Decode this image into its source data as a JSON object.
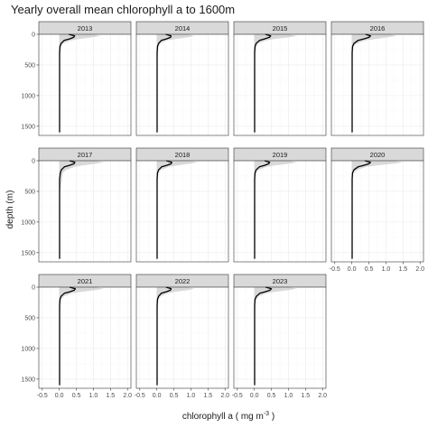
{
  "chart_data": {
    "type": "line",
    "title": "Yearly overall mean chlorophyll a to 1600m",
    "xlabel": "chlorophyll a ( mg m",
    "xlabel_superscript": "-3",
    "xlabel_suffix": " )",
    "ylabel": "depth (m)",
    "facets": [
      "2013",
      "2014",
      "2015",
      "2016",
      "2017",
      "2018",
      "2019",
      "2020",
      "2021",
      "2022",
      "2023"
    ],
    "facet_columns": 4,
    "xlim": [
      -0.6,
      2.1
    ],
    "ylim": [
      0,
      1650
    ],
    "y_reversed": true,
    "x_ticks": [
      -0.5,
      0.0,
      0.5,
      1.0,
      1.5,
      2.0
    ],
    "x_tick_labels": [
      "-0.5",
      "0.0",
      "0.5",
      "1.0",
      "1.5",
      "2.0"
    ],
    "y_ticks": [
      0,
      500,
      1000,
      1500
    ],
    "y_tick_labels": [
      "0",
      "500",
      "1000",
      "1500"
    ],
    "grid": true,
    "colors": {
      "mean_line": "#000000",
      "range_band": "#cccccc",
      "strip_fill": "#d9d9d9",
      "panel_border": "#333333",
      "grid": "#ebebeb"
    },
    "series": [
      {
        "facet": "2013",
        "depth": [
          0,
          25,
          50,
          75,
          100,
          150,
          200,
          300,
          500,
          1000,
          1600
        ],
        "mean": [
          0.28,
          0.45,
          0.42,
          0.3,
          0.14,
          0.05,
          0.02,
          0.01,
          0.01,
          0.01,
          0.01
        ],
        "max": [
          0.95,
          1.2,
          0.95,
          0.6,
          0.35,
          0.12,
          0.05,
          0.03,
          0.02,
          0.02,
          0.02
        ]
      },
      {
        "facet": "2014",
        "depth": [
          0,
          25,
          50,
          75,
          100,
          150,
          200,
          300,
          500,
          1000,
          1600
        ],
        "mean": [
          0.26,
          0.42,
          0.4,
          0.28,
          0.13,
          0.05,
          0.02,
          0.01,
          0.01,
          0.01,
          0.01
        ],
        "max": [
          0.9,
          1.1,
          0.9,
          0.55,
          0.3,
          0.1,
          0.05,
          0.03,
          0.02,
          0.02,
          0.02
        ]
      },
      {
        "facet": "2015",
        "depth": [
          0,
          25,
          50,
          75,
          100,
          150,
          200,
          300,
          500,
          1000,
          1600
        ],
        "mean": [
          0.32,
          0.48,
          0.44,
          0.3,
          0.15,
          0.05,
          0.02,
          0.01,
          0.01,
          0.01,
          0.01
        ],
        "max": [
          1.0,
          1.25,
          1.0,
          0.6,
          0.35,
          0.12,
          0.05,
          0.03,
          0.02,
          0.02,
          0.02
        ]
      },
      {
        "facet": "2016",
        "depth": [
          0,
          25,
          50,
          75,
          100,
          150,
          200,
          300,
          500,
          1000,
          1600
        ],
        "mean": [
          0.4,
          0.55,
          0.5,
          0.35,
          0.18,
          0.06,
          0.02,
          0.01,
          0.01,
          0.01,
          0.01
        ],
        "max": [
          1.1,
          1.3,
          1.05,
          0.7,
          0.4,
          0.15,
          0.05,
          0.03,
          0.02,
          0.02,
          0.02
        ]
      },
      {
        "facet": "2017",
        "depth": [
          0,
          25,
          50,
          75,
          100,
          150,
          200,
          300,
          500,
          1000,
          1600
        ],
        "mean": [
          0.3,
          0.46,
          0.43,
          0.3,
          0.15,
          0.06,
          0.03,
          0.01,
          0.01,
          0.01,
          0.01
        ],
        "max": [
          1.05,
          1.3,
          1.05,
          0.7,
          0.45,
          0.2,
          0.1,
          0.08,
          0.02,
          0.02,
          0.02
        ]
      },
      {
        "facet": "2018",
        "depth": [
          0,
          25,
          50,
          75,
          100,
          150,
          200,
          300,
          500,
          1000,
          1600
        ],
        "mean": [
          0.28,
          0.44,
          0.42,
          0.29,
          0.14,
          0.05,
          0.02,
          0.01,
          0.01,
          0.01,
          0.01
        ],
        "max": [
          0.95,
          1.2,
          0.95,
          0.6,
          0.35,
          0.12,
          0.05,
          0.03,
          0.02,
          0.02,
          0.02
        ]
      },
      {
        "facet": "2019",
        "depth": [
          0,
          25,
          50,
          75,
          100,
          150,
          200,
          300,
          500,
          1000,
          1600
        ],
        "mean": [
          0.3,
          0.45,
          0.42,
          0.3,
          0.15,
          0.05,
          0.02,
          0.01,
          0.01,
          0.01,
          0.01
        ],
        "max": [
          1.0,
          1.25,
          1.0,
          0.62,
          0.36,
          0.12,
          0.05,
          0.03,
          0.02,
          0.02,
          0.02
        ]
      },
      {
        "facet": "2020",
        "depth": [
          0,
          25,
          50,
          75,
          100,
          150,
          200,
          300,
          500,
          1000,
          1600
        ],
        "mean": [
          0.38,
          0.55,
          0.5,
          0.35,
          0.18,
          0.06,
          0.02,
          0.01,
          0.01,
          0.01,
          0.01
        ],
        "max": [
          1.2,
          1.5,
          1.2,
          0.75,
          0.42,
          0.15,
          0.05,
          0.03,
          0.02,
          0.02,
          0.02
        ]
      },
      {
        "facet": "2021",
        "depth": [
          0,
          25,
          50,
          75,
          100,
          150,
          200,
          300,
          500,
          1000,
          1600
        ],
        "mean": [
          0.3,
          0.47,
          0.44,
          0.31,
          0.15,
          0.05,
          0.02,
          0.01,
          0.01,
          0.01,
          0.01
        ],
        "max": [
          1.05,
          1.3,
          1.05,
          0.65,
          0.38,
          0.13,
          0.05,
          0.03,
          0.02,
          0.02,
          0.02
        ]
      },
      {
        "facet": "2022",
        "depth": [
          0,
          25,
          50,
          75,
          100,
          150,
          200,
          300,
          500,
          1000,
          1600
        ],
        "mean": [
          0.27,
          0.42,
          0.4,
          0.28,
          0.13,
          0.05,
          0.02,
          0.01,
          0.01,
          0.01,
          0.01
        ],
        "max": [
          0.9,
          1.1,
          0.9,
          0.55,
          0.32,
          0.11,
          0.05,
          0.03,
          0.02,
          0.02,
          0.02
        ]
      },
      {
        "facet": "2023",
        "depth": [
          0,
          25,
          50,
          75,
          100,
          150,
          200,
          300,
          500,
          1000,
          1600
        ],
        "mean": [
          0.33,
          0.5,
          0.46,
          0.32,
          0.16,
          0.06,
          0.02,
          0.01,
          0.01,
          0.01,
          0.01
        ],
        "max": [
          1.0,
          1.25,
          1.0,
          0.62,
          0.36,
          0.13,
          0.05,
          0.03,
          0.02,
          0.02,
          0.02
        ]
      }
    ]
  }
}
